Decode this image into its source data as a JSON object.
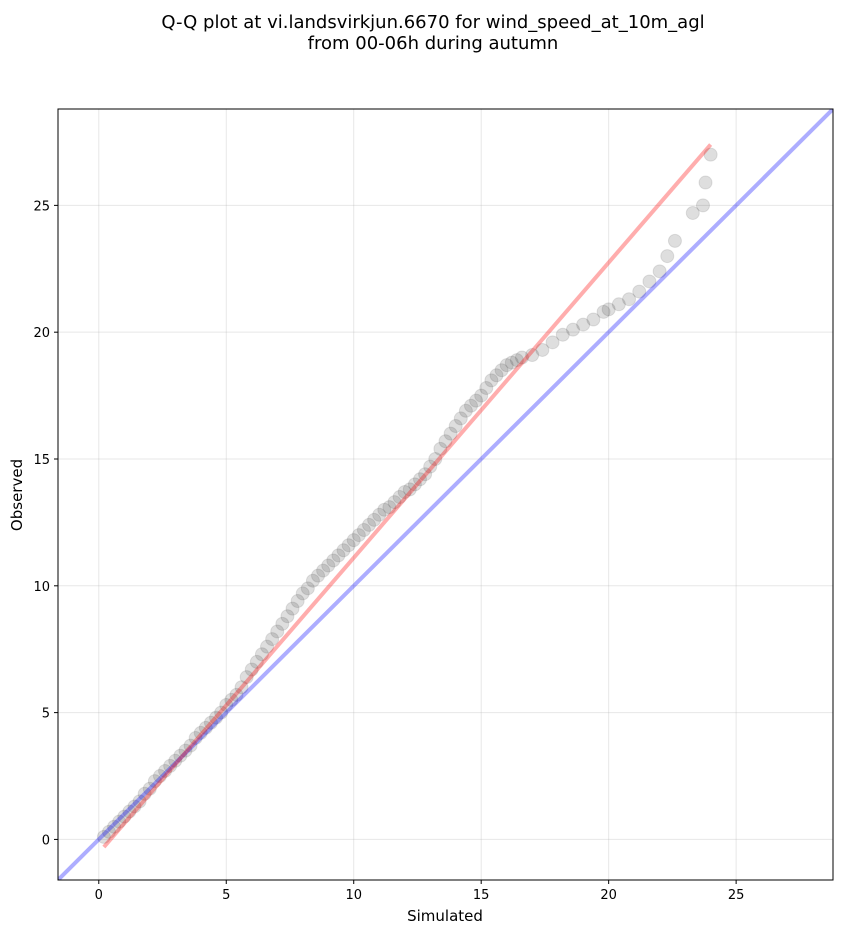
{
  "chart_data": {
    "type": "scatter",
    "title_lines": [
      "Q-Q plot at vi.landsvirkjun.6670 for wind_speed_at_10m_agl",
      "from 00-06h during autumn"
    ],
    "xlabel": "Simulated",
    "ylabel": "Observed",
    "xlim": [
      -1.6,
      28.8
    ],
    "ylim": [
      -1.6,
      28.8
    ],
    "xticks": [
      0,
      5,
      10,
      15,
      20,
      25
    ],
    "yticks": [
      0,
      5,
      10,
      15,
      20,
      25
    ],
    "grid": true,
    "lines": [
      {
        "role": "identity",
        "x": [
          -1.6,
          28.8
        ],
        "y": [
          -1.6,
          28.8
        ],
        "color": "#0000ff"
      },
      {
        "role": "fit",
        "x": [
          0.2,
          24.0
        ],
        "y": [
          -0.3,
          27.4
        ],
        "color": "#ff0000"
      }
    ],
    "point_color": "#333333",
    "points": {
      "x": [
        0.2,
        0.4,
        0.6,
        0.8,
        1.0,
        1.2,
        1.4,
        1.6,
        1.8,
        2.0,
        2.2,
        2.4,
        2.6,
        2.8,
        3.0,
        3.2,
        3.4,
        3.6,
        3.8,
        4.0,
        4.2,
        4.4,
        4.6,
        4.8,
        5.0,
        5.2,
        5.4,
        5.6,
        5.8,
        6.0,
        6.2,
        6.4,
        6.6,
        6.8,
        7.0,
        7.2,
        7.4,
        7.6,
        7.8,
        8.0,
        8.2,
        8.4,
        8.6,
        8.8,
        9.0,
        9.2,
        9.4,
        9.6,
        9.8,
        10.0,
        10.2,
        10.4,
        10.6,
        10.8,
        11.0,
        11.2,
        11.4,
        11.6,
        11.8,
        12.0,
        12.2,
        12.4,
        12.6,
        12.8,
        13.0,
        13.2,
        13.4,
        13.6,
        13.8,
        14.0,
        14.2,
        14.4,
        14.6,
        14.8,
        15.0,
        15.2,
        15.4,
        15.6,
        15.8,
        16.0,
        16.2,
        16.4,
        16.6,
        17.0,
        17.4,
        17.8,
        18.2,
        18.6,
        19.0,
        19.4,
        19.8,
        20.0,
        20.4,
        20.8,
        21.2,
        21.6,
        22.0,
        22.3,
        22.6,
        23.3,
        23.7,
        23.8,
        24.0
      ],
      "y": [
        0.1,
        0.3,
        0.5,
        0.7,
        0.9,
        1.1,
        1.3,
        1.5,
        1.8,
        2.0,
        2.3,
        2.5,
        2.7,
        2.9,
        3.1,
        3.3,
        3.5,
        3.7,
        4.0,
        4.2,
        4.4,
        4.6,
        4.8,
        5.0,
        5.3,
        5.5,
        5.7,
        6.0,
        6.4,
        6.7,
        7.0,
        7.3,
        7.6,
        7.9,
        8.2,
        8.5,
        8.8,
        9.1,
        9.4,
        9.7,
        9.9,
        10.2,
        10.4,
        10.6,
        10.8,
        11.0,
        11.2,
        11.4,
        11.6,
        11.8,
        12.0,
        12.2,
        12.4,
        12.6,
        12.8,
        13.0,
        13.1,
        13.3,
        13.5,
        13.7,
        13.8,
        14.0,
        14.2,
        14.4,
        14.7,
        15.0,
        15.4,
        15.7,
        16.0,
        16.3,
        16.6,
        16.9,
        17.1,
        17.3,
        17.5,
        17.8,
        18.1,
        18.3,
        18.5,
        18.7,
        18.8,
        18.9,
        19.0,
        19.1,
        19.3,
        19.6,
        19.9,
        20.1,
        20.3,
        20.5,
        20.8,
        20.9,
        21.1,
        21.3,
        21.6,
        22.0,
        22.4,
        23.0,
        23.6,
        24.7,
        25.0,
        25.9,
        27.0
      ]
    }
  }
}
